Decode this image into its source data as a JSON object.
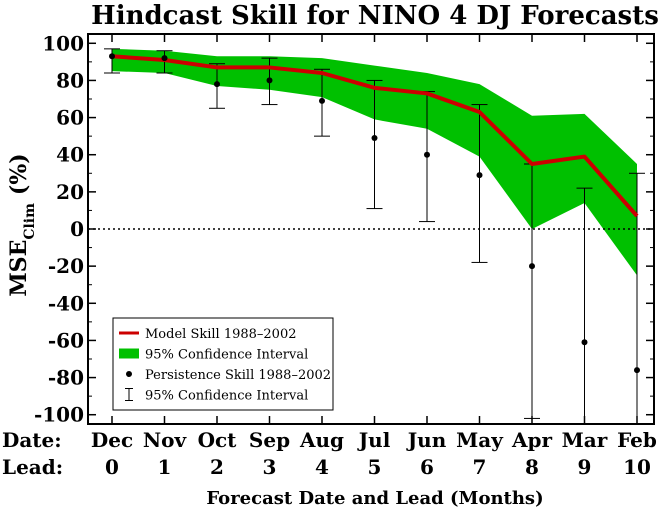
{
  "chart_data": {
    "type": "line",
    "title": "Hindcast Skill for NINO 4 DJ Forecasts",
    "xlabel": "Forecast Date and Lead (Months)",
    "ylabel_main": "MSE",
    "ylabel_sub": "Clim",
    "ylabel_unit": "(%)",
    "row_labels": [
      "Date:",
      "Lead:"
    ],
    "dates": [
      "Dec",
      "Nov",
      "Oct",
      "Sep",
      "Aug",
      "Jul",
      "Jun",
      "May",
      "Apr",
      "Mar",
      "Feb"
    ],
    "leads": [
      0,
      1,
      2,
      3,
      4,
      5,
      6,
      7,
      8,
      9,
      10
    ],
    "ylim": [
      -105,
      105
    ],
    "yticks": [
      -100,
      -80,
      -60,
      -40,
      -20,
      0,
      20,
      40,
      60,
      80,
      100
    ],
    "zero_line": "dotted",
    "legend_position": "bottom-left",
    "series": [
      {
        "name": "Model Skill 1988–2002",
        "values": [
          93,
          91,
          87,
          87,
          84,
          76,
          73,
          63,
          35,
          39,
          7
        ],
        "color": "#cc0000"
      },
      {
        "name": "95% Confidence Interval",
        "lower": [
          85,
          84,
          77,
          75,
          71,
          59,
          54,
          39,
          0,
          14,
          -25
        ],
        "upper": [
          97,
          96,
          93,
          93,
          92,
          88,
          84,
          78,
          61,
          62,
          35
        ],
        "color": "#00c000"
      },
      {
        "name": "Persistence Skill 1988–2002",
        "values": [
          93,
          92,
          78,
          80,
          69,
          49,
          40,
          29,
          -20,
          -61,
          -76
        ],
        "color": "#000000"
      },
      {
        "name": "95% Confidence Interval",
        "lower": [
          84,
          84,
          65,
          67,
          50,
          11,
          4,
          -18,
          -102,
          -105,
          -105
        ],
        "upper": [
          97,
          96,
          89,
          92,
          86,
          80,
          74,
          67,
          35,
          22,
          30
        ],
        "color": "#000000"
      }
    ]
  }
}
